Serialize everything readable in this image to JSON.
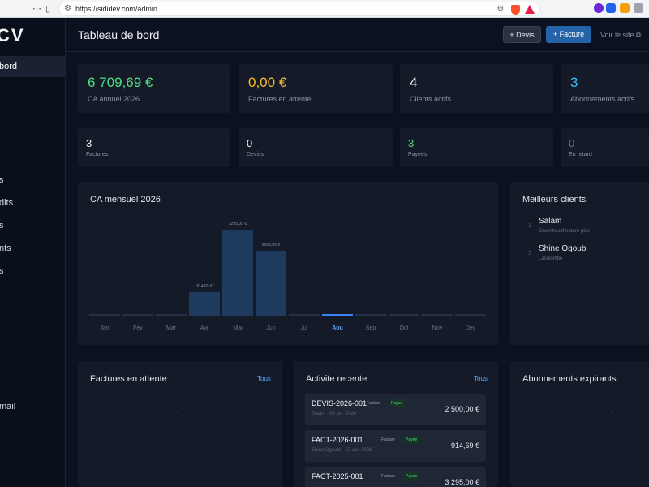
{
  "browser": {
    "url": "https://sididev.com/admin"
  },
  "sidebar": {
    "logo": "CV",
    "items": [
      {
        "label": "bord",
        "active": true
      },
      {
        "label": "s"
      },
      {
        "label": "dits"
      },
      {
        "label": "s"
      },
      {
        "label": "nts"
      },
      {
        "label": "s"
      },
      {
        "label": "mail"
      }
    ]
  },
  "header": {
    "title": "Tableau de bord",
    "devis_button": "+ Devis",
    "facture_button": "+ Facture",
    "site_link": "Voir le site"
  },
  "stats": [
    {
      "value": "6 709,69 €",
      "label": "CA annuel 2026",
      "color": "#4ade80"
    },
    {
      "value": "0,00 €",
      "label": "Factures en attente",
      "color": "#fbbf24"
    },
    {
      "value": "4",
      "label": "Clients actifs",
      "color": "#f3f4f6"
    },
    {
      "value": "3",
      "label": "Abonnements actifs",
      "color": "#38bdf8"
    }
  ],
  "counts": [
    {
      "value": "3",
      "label": "Factures",
      "color": "#f3f4f6"
    },
    {
      "value": "0",
      "label": "Deviss",
      "color": "#f3f4f6"
    },
    {
      "value": "3",
      "label": "Payees",
      "color": "#4ade80"
    },
    {
      "value": "0",
      "label": "En retard",
      "color": "#6b7280"
    }
  ],
  "revenue_chart": {
    "title": "CA mensuel 2026",
    "chart_data": {
      "type": "bar",
      "categories": [
        "Jan",
        "Fev",
        "Mar",
        "Avr",
        "Mai",
        "Jun",
        "Jul",
        "Aou",
        "Sep",
        "Oct",
        "Nov",
        "Dec"
      ],
      "values": [
        0,
        0,
        0,
        914.69,
        3295.0,
        2500.0,
        0,
        0,
        0,
        0,
        0,
        0
      ],
      "value_labels": [
        "",
        "",
        "",
        "914,69 €",
        "3295,00 €",
        "2500,00 €",
        "",
        "",
        "",
        "",
        "",
        ""
      ],
      "current_month": "Aou",
      "ylim": [
        0,
        3295
      ]
    }
  },
  "top_clients": {
    "title": "Meilleurs clients",
    "items": [
      {
        "rank": "1",
        "name": "Salam",
        "sub": "Greenhealthnature-plus"
      },
      {
        "rank": "2",
        "name": "Shine Ogoubi",
        "sub": "Lacolombe"
      }
    ]
  },
  "pending_invoices": {
    "title": "Factures en attente",
    "link": "Tous",
    "empty": "-"
  },
  "activity": {
    "title": "Activite recente",
    "link": "Tous",
    "items": [
      {
        "ref": "DEVIS-2026-001",
        "type": "Facture",
        "status": "Payee",
        "sub": "Salam · 08 avr. 2026",
        "amount": "2 500,00 €"
      },
      {
        "ref": "FACT-2026-001",
        "type": "Facture",
        "status": "Payee",
        "sub": "Shine Ogoubi · 07 avr. 2026",
        "amount": "914,69 €"
      },
      {
        "ref": "FACT-2025-001",
        "type": "Facture",
        "status": "Payee",
        "sub": "",
        "amount": "3 295,00 €"
      }
    ]
  },
  "subscriptions": {
    "title": "Abonnements expirants",
    "empty": "-"
  }
}
